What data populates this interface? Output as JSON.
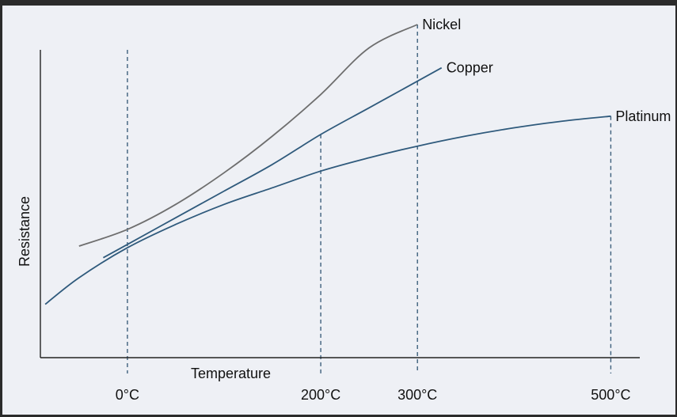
{
  "chart_data": {
    "type": "line",
    "title": "",
    "xlabel": "Temperature",
    "ylabel": "Resistance",
    "x_range": [
      -90,
      530
    ],
    "y_range": [
      0,
      1
    ],
    "ticks": [
      {
        "value": 0,
        "label": "0°C"
      },
      {
        "value": 200,
        "label": "200°C"
      },
      {
        "value": 300,
        "label": "300°C"
      },
      {
        "value": 500,
        "label": "500°C"
      }
    ],
    "grid": false,
    "series": [
      {
        "name": "Nickel",
        "color": "#6e6e6e",
        "x": [
          -50,
          0,
          50,
          100,
          150,
          200,
          250,
          300
        ],
        "y": [
          0.335,
          0.385,
          0.46,
          0.555,
          0.665,
          0.79,
          0.93,
          1.0
        ]
      },
      {
        "name": "Copper",
        "color": "#2f5a7c",
        "x": [
          -25,
          0,
          50,
          100,
          150,
          200,
          250,
          300,
          325
        ],
        "y": [
          0.3,
          0.34,
          0.42,
          0.5,
          0.58,
          0.67,
          0.75,
          0.83,
          0.87
        ]
      },
      {
        "name": "Platinum",
        "color": "#2f5a7c",
        "x": [
          -85,
          -50,
          0,
          50,
          100,
          150,
          200,
          250,
          300,
          350,
          400,
          450,
          500
        ],
        "y": [
          0.16,
          0.24,
          0.33,
          0.4,
          0.46,
          0.51,
          0.56,
          0.6,
          0.635,
          0.665,
          0.69,
          0.71,
          0.725
        ]
      }
    ]
  }
}
